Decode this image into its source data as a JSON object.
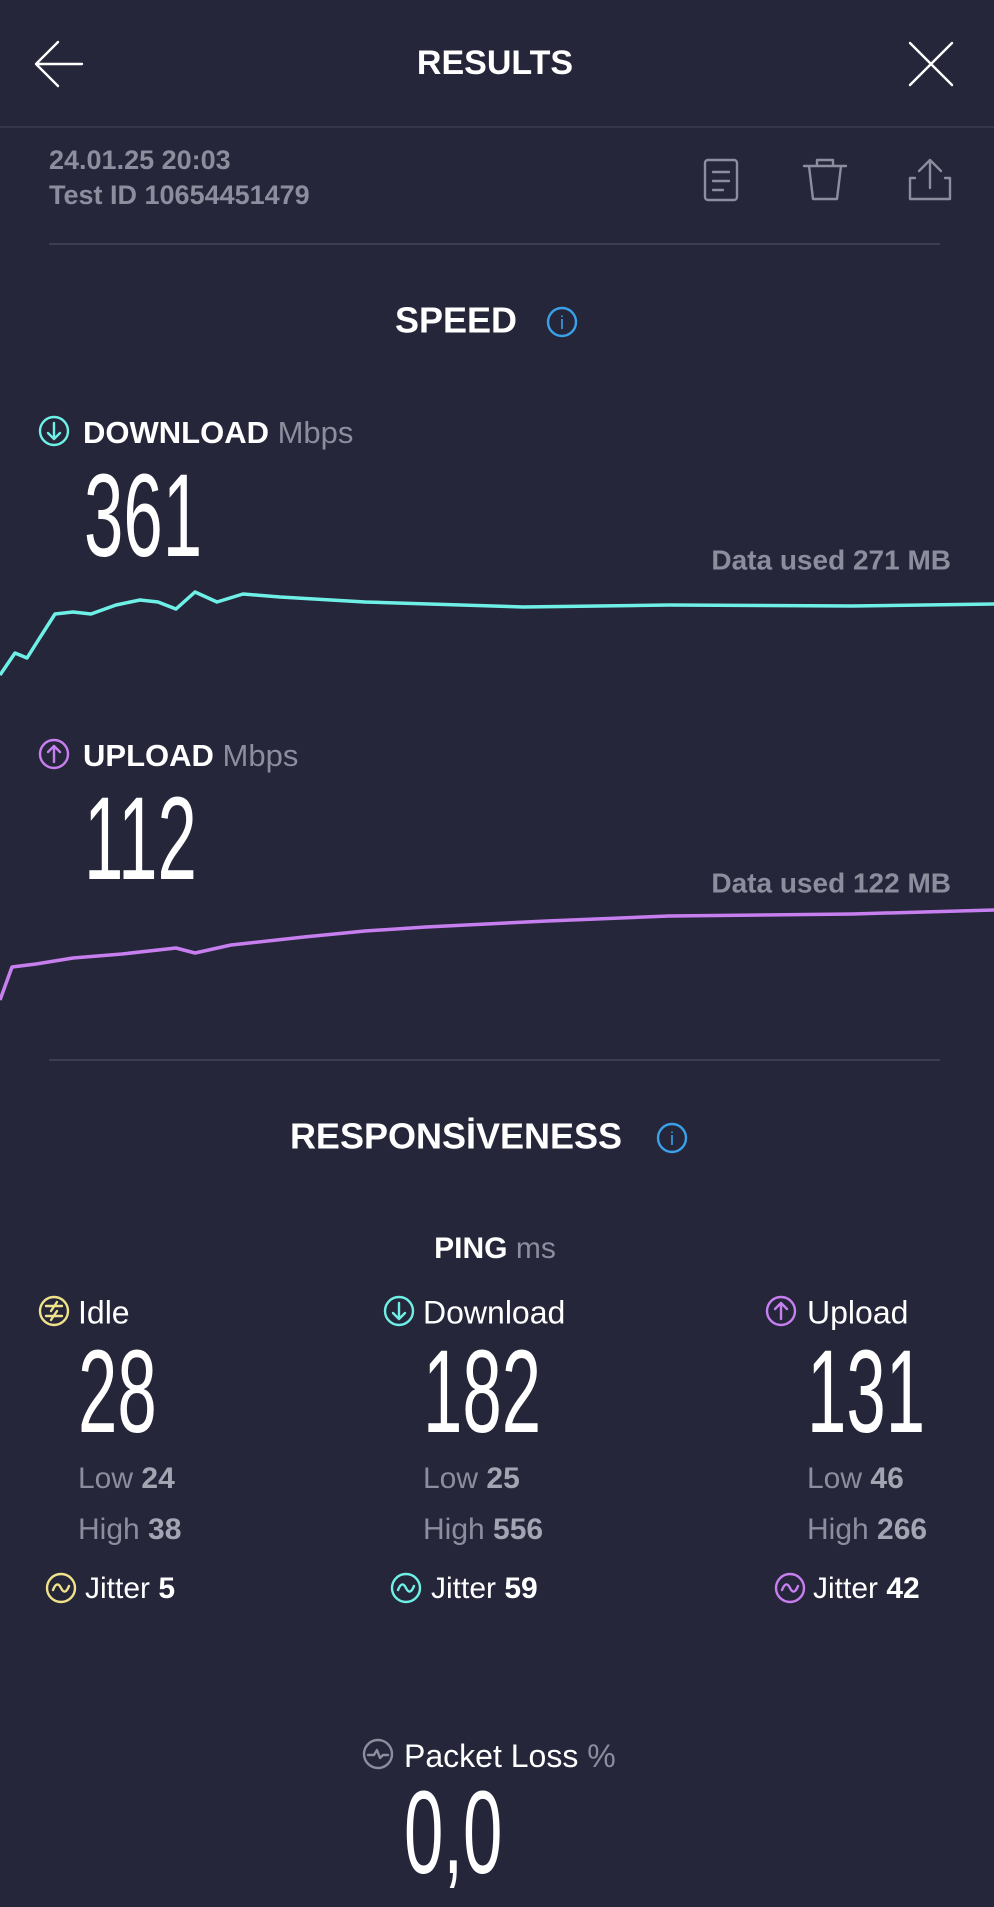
{
  "header": {
    "title": "RESULTS",
    "date": "24.01.25 20:03",
    "test_id": "Test ID 10654451479"
  },
  "speed": {
    "title": "SPEED",
    "download": {
      "label": "DOWNLOAD",
      "unit": "Mbps",
      "value": 361,
      "data_used": "Data used 271 MB"
    },
    "upload": {
      "label": "UPLOAD",
      "unit": "Mbps",
      "value": 112,
      "data_used": "Data used 122 MB"
    }
  },
  "responsiveness": {
    "title": "RESPONSİVENESS",
    "ping": {
      "label": "PING",
      "unit": "ms",
      "columns": [
        {
          "label": "Idle",
          "value": 28,
          "low_label": "Low",
          "low": 24,
          "high_label": "High",
          "high": 38,
          "jitter_label": "Jitter",
          "jitter": 5
        },
        {
          "label": "Download",
          "value": 182,
          "low_label": "Low",
          "low": 25,
          "high_label": "High",
          "high": 556,
          "jitter_label": "Jitter",
          "jitter": 59
        },
        {
          "label": "Upload",
          "value": 131,
          "low_label": "Low",
          "low": 46,
          "high_label": "High",
          "high": 266,
          "jitter_label": "Jitter",
          "jitter": 42
        }
      ]
    }
  },
  "packet_loss": {
    "label": "Packet Loss",
    "unit": "%",
    "value": "0,0"
  }
}
